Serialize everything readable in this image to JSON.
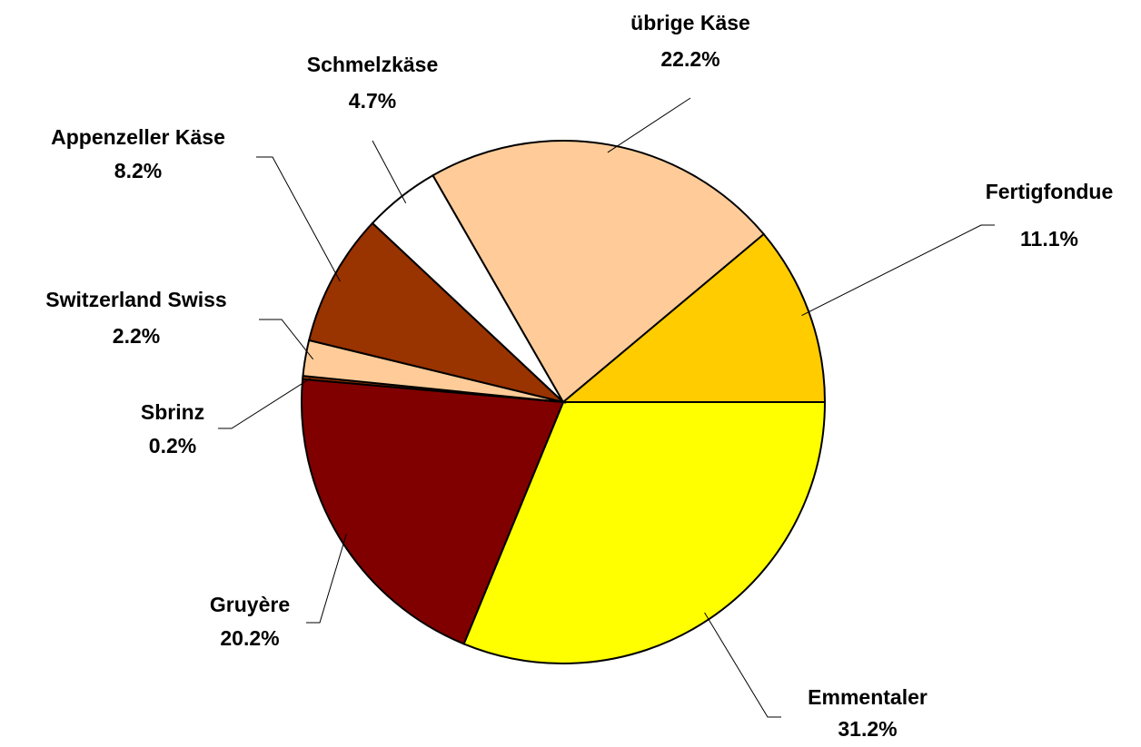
{
  "chart_data": {
    "type": "pie",
    "categories": [
      "Emmentaler",
      "Gruyère",
      "Sbrinz",
      "Switzerland Swiss",
      "Appenzeller Käse",
      "Schmelzkäse",
      "übrige Käse",
      "Fertigfondue"
    ],
    "values": [
      31.2,
      20.2,
      0.2,
      2.2,
      8.2,
      4.7,
      22.2,
      11.1
    ],
    "value_labels": [
      "31.2%",
      "20.2%",
      "0.2%",
      "2.2%",
      "8.2%",
      "4.7%",
      "22.2%",
      "11.1%"
    ],
    "colors": [
      "#ffff00",
      "#800000",
      "#993300",
      "#ffcc99",
      "#993300",
      "#ffffff",
      "#ffcc99",
      "#ffcc00"
    ]
  }
}
